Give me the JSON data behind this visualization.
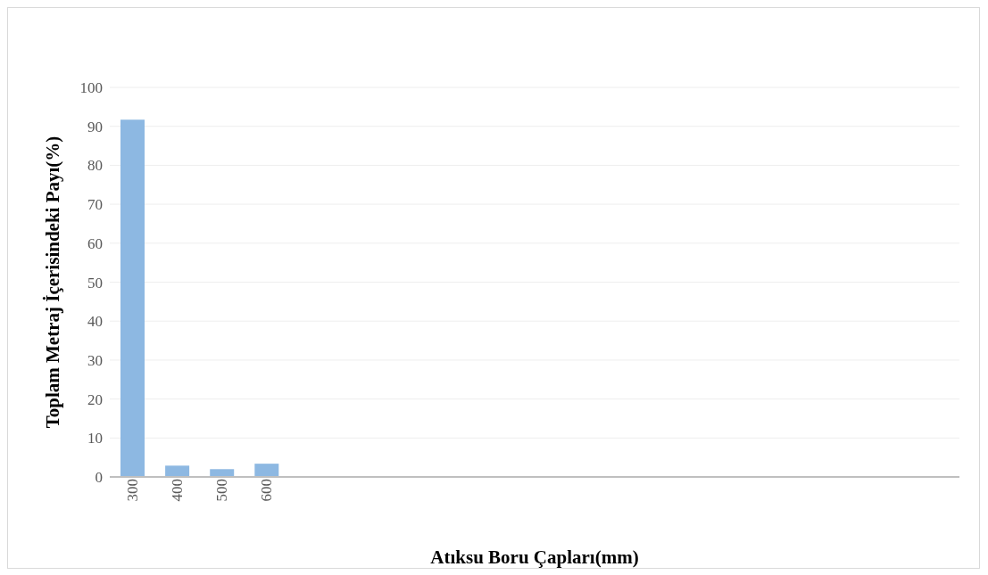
{
  "chart_data": {
    "type": "bar",
    "xlabel": "Atıksu Boru Çapları(mm)",
    "ylabel": "Toplam Metraj İçerisindeki Payı(%)",
    "categories": [
      "300",
      "400",
      "500",
      "600",
      null,
      null,
      null,
      null,
      null,
      null,
      null,
      null,
      null,
      null,
      null,
      null,
      null,
      null,
      null
    ],
    "values": [
      91.7,
      2.9,
      2.0,
      3.4,
      null,
      null,
      null,
      null,
      null,
      null,
      null,
      null,
      null,
      null,
      null,
      null,
      null,
      null,
      null
    ],
    "color": "#8db8e2",
    "ylim": [
      0,
      100
    ],
    "yticks": [
      0,
      10,
      20,
      30,
      40,
      50,
      60,
      70,
      80,
      90,
      100
    ],
    "grid": "y",
    "legend": false
  }
}
